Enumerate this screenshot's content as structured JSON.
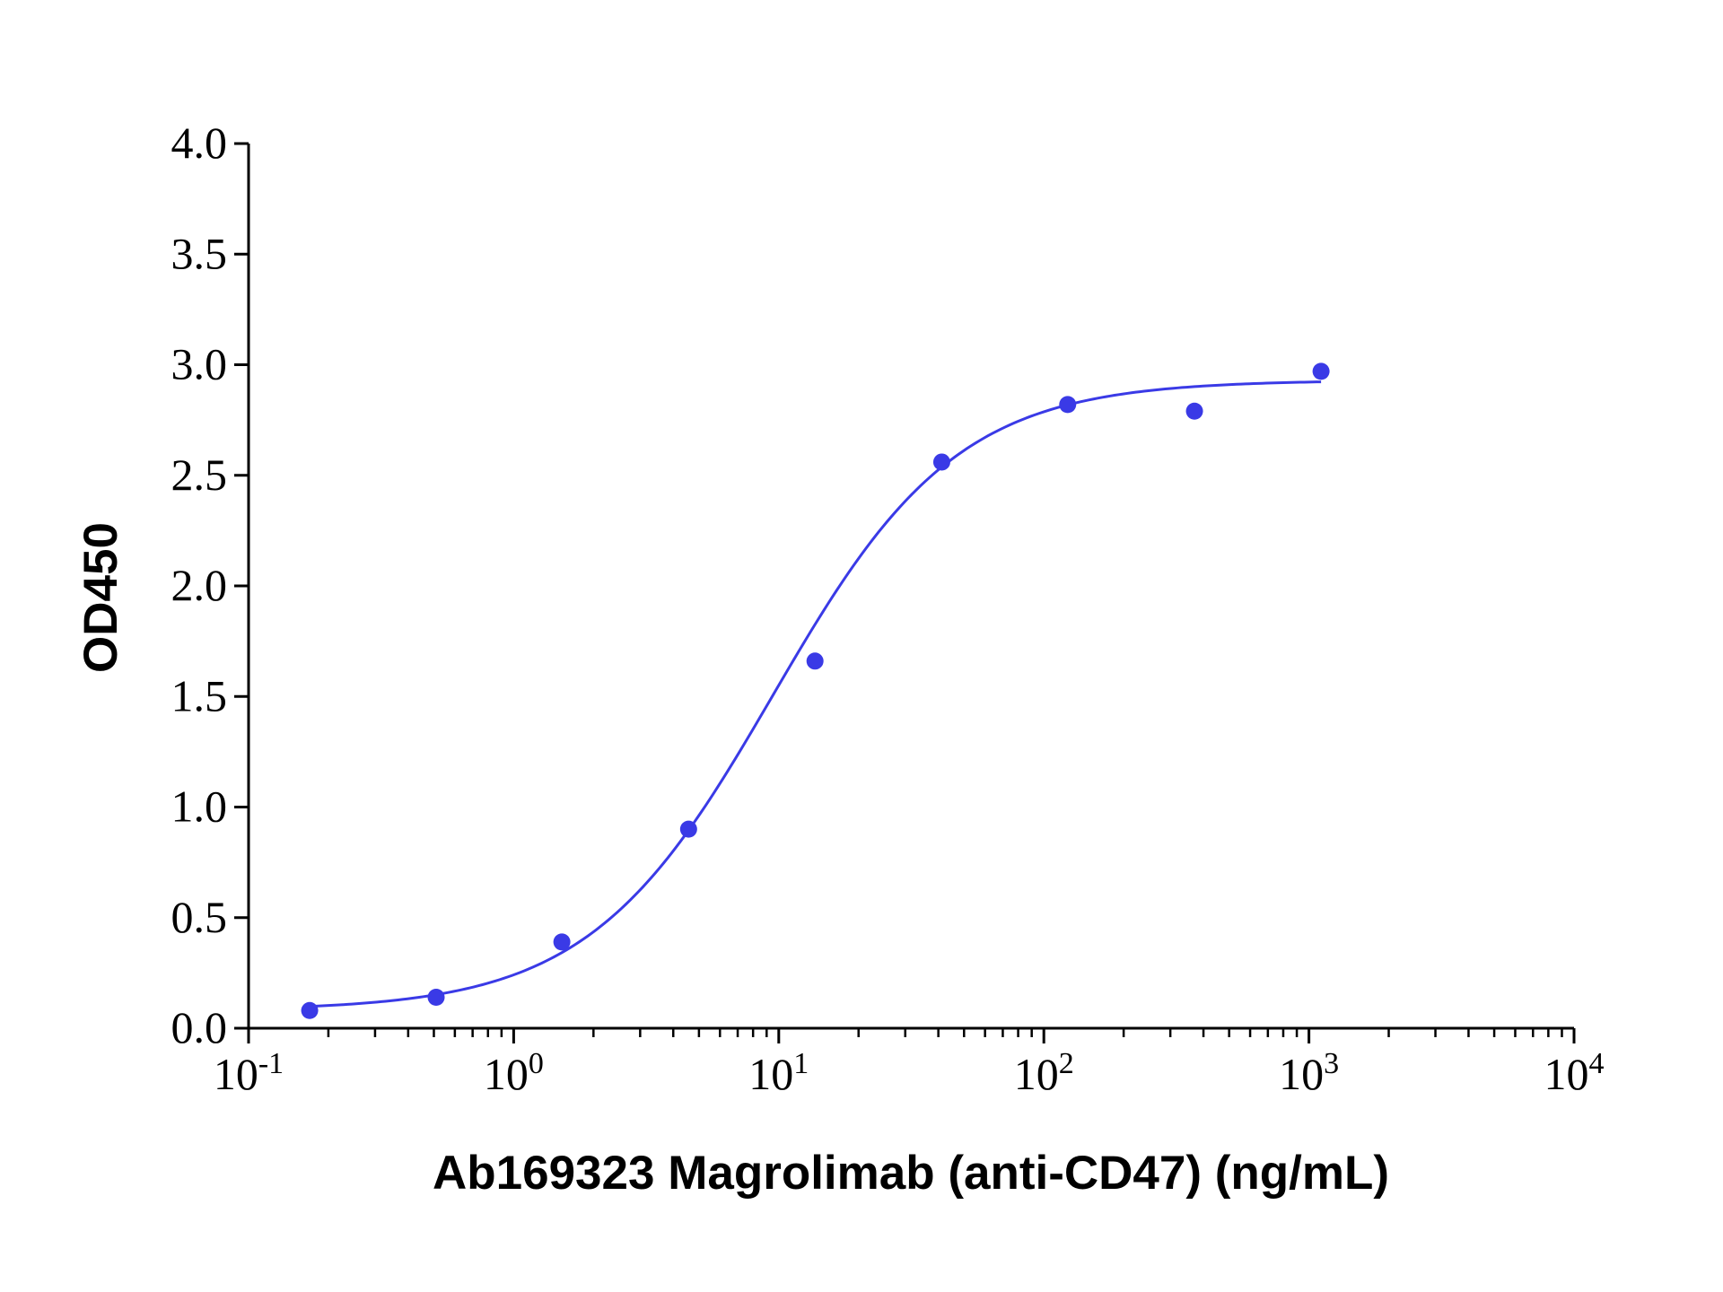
{
  "chart_data": {
    "type": "scatter",
    "title": "",
    "xlabel": "Ab169323 Magrolimab (anti-CD47) (ng/mL)",
    "ylabel": "OD450",
    "x_scale": "log10",
    "xlim": [
      0.1,
      10000
    ],
    "ylim": [
      0.0,
      4.0
    ],
    "grid": false,
    "legend": "none",
    "color": "#3a3ae6",
    "x_ticks": [
      {
        "base": "10",
        "exp": "-1"
      },
      {
        "base": "10",
        "exp": "0"
      },
      {
        "base": "10",
        "exp": "1"
      },
      {
        "base": "10",
        "exp": "2"
      },
      {
        "base": "10",
        "exp": "3"
      },
      {
        "base": "10",
        "exp": "4"
      }
    ],
    "y_ticks": [
      "0.0",
      "0.5",
      "1.0",
      "1.5",
      "2.0",
      "2.5",
      "3.0",
      "3.5",
      "4.0"
    ],
    "series": [
      {
        "points": [
          {
            "x": 0.17,
            "y": 0.08
          },
          {
            "x": 0.51,
            "y": 0.14
          },
          {
            "x": 1.52,
            "y": 0.39
          },
          {
            "x": 4.57,
            "y": 0.9
          },
          {
            "x": 13.7,
            "y": 1.66
          },
          {
            "x": 41.2,
            "y": 2.56
          },
          {
            "x": 123,
            "y": 2.82
          },
          {
            "x": 370,
            "y": 2.79
          },
          {
            "x": 1111,
            "y": 2.97
          }
        ],
        "fit": {
          "model": "4PL",
          "bottom": 0.08,
          "top": 2.93,
          "ec50": 9.5,
          "hill": 1.25,
          "x_range": [
            0.17,
            1111
          ]
        }
      }
    ]
  }
}
